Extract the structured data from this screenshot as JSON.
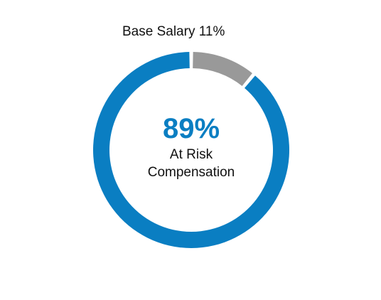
{
  "chart_data": {
    "type": "pie",
    "variant": "donut",
    "categories": [
      "At Risk Compensation",
      "Base Salary"
    ],
    "values": [
      89,
      11
    ],
    "colors": [
      "#0a7ec2",
      "#999999"
    ],
    "labels": {
      "base_salary": "Base Salary 11%"
    },
    "center": {
      "value": "89%",
      "caption_line1": "At Risk",
      "caption_line2": "Compensation"
    }
  }
}
